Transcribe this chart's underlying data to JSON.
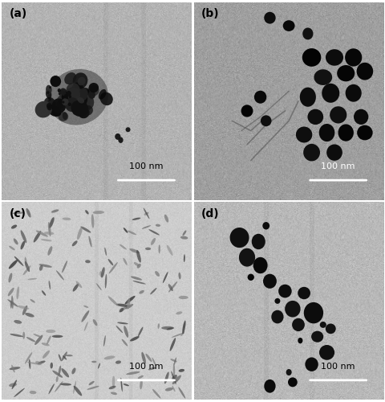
{
  "figure_size": [
    4.81,
    5.0
  ],
  "dpi": 100,
  "panels": [
    "(a)",
    "(b)",
    "(c)",
    "(d)"
  ],
  "scale_bar_text": "100 nm",
  "bg_color_a": 0.7,
  "bg_color_b": 0.62,
  "bg_color_c": 0.8,
  "bg_color_d": 0.72,
  "label_fontsize": 10,
  "scalebar_fontsize": 8,
  "outer_border": "#888888"
}
